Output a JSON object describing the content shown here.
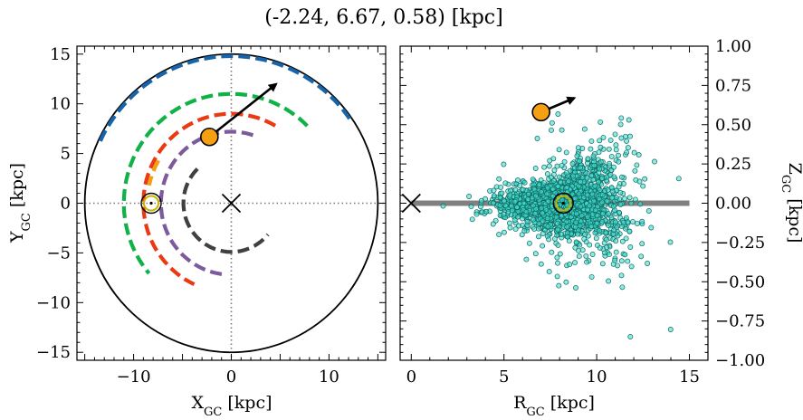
{
  "figure": {
    "title": "(-2.24, 6.67, 0.58) [kpc]"
  },
  "colors": {
    "arm_blue": "#1864a8",
    "arm_green": "#10b248",
    "arm_orange": "#f4a016",
    "arm_red": "#ea3a12",
    "arm_purple": "#7d5a9e",
    "arm_dark": "#404040",
    "source_marker": "#f5a012",
    "sun_marker": "#c8b400",
    "stars": "#40e0d0",
    "disk_line": "#808080"
  },
  "chart_data": [
    {
      "type": "scatter",
      "panel": "left",
      "xlabel": "X",
      "xlabel_sub": "GC",
      "xlabel_unit": " [kpc]",
      "ylabel": "Y",
      "ylabel_sub": "GC",
      "ylabel_unit": " [kpc]",
      "xlim": [
        -15.8,
        15.8
      ],
      "ylim": [
        -15.8,
        15.8
      ],
      "x_ticks": [
        -10,
        0,
        10
      ],
      "y_ticks": [
        -15,
        -10,
        -5,
        0,
        5,
        10,
        15
      ],
      "x_tick_labels": [
        "−10",
        "0",
        "10"
      ],
      "y_tick_labels": [
        "−15",
        "−10",
        "−5",
        "0",
        "5",
        "10",
        "15"
      ],
      "galaxy_radius": 15,
      "galactic_center": [
        0,
        0
      ],
      "sun": [
        -8.2,
        0
      ],
      "source": [
        -2.24,
        6.67
      ],
      "velocity_arrow_tip": [
        4.6,
        12.0
      ],
      "spiral_arms": [
        {
          "color_key": "arm_blue",
          "r": 14.8,
          "theta_start": 155,
          "theta_end": 35
        },
        {
          "color_key": "arm_green",
          "r": 11.0,
          "theta_start": 45,
          "theta_end": 220
        },
        {
          "color_key": "arm_orange",
          "r": 8.6,
          "theta_start": 150,
          "theta_end": 168
        },
        {
          "color_key": "arm_red",
          "r": 9.0,
          "theta_start": 60,
          "theta_end": 245
        },
        {
          "color_key": "arm_purple",
          "r": 7.2,
          "theta_start": 72,
          "theta_end": 265
        },
        {
          "color_key": "arm_dark",
          "r": 4.9,
          "theta_start": 135,
          "theta_end": 320
        }
      ]
    },
    {
      "type": "scatter",
      "panel": "right",
      "xlabel": "R",
      "xlabel_sub": "GC",
      "xlabel_unit": " [kpc]",
      "ylabel": "Z",
      "ylabel_sub": "GC",
      "ylabel_unit": " [kpc]",
      "xlim": [
        -0.6,
        16.0
      ],
      "ylim": [
        -1.0,
        1.0
      ],
      "x_ticks": [
        0,
        5,
        10,
        15
      ],
      "y_ticks": [
        -1.0,
        -0.75,
        -0.5,
        -0.25,
        0.0,
        0.25,
        0.5,
        0.75,
        1.0
      ],
      "x_tick_labels": [
        "0",
        "5",
        "10",
        "15"
      ],
      "y_tick_labels": [
        "−1.00",
        "−0.75",
        "−0.50",
        "−0.25",
        "0.00",
        "0.25",
        "0.50",
        "0.75",
        "1.00"
      ],
      "galactic_center": [
        0,
        0
      ],
      "sun": [
        8.2,
        0
      ],
      "source": [
        7.0,
        0.58
      ],
      "velocity_arrow_tip": [
        8.8,
        0.67
      ],
      "disk_line": {
        "x": [
          0,
          15
        ],
        "z": 0
      },
      "star_cloud": {
        "count": 2000,
        "center_r": 8.2,
        "seed": 7
      }
    }
  ]
}
